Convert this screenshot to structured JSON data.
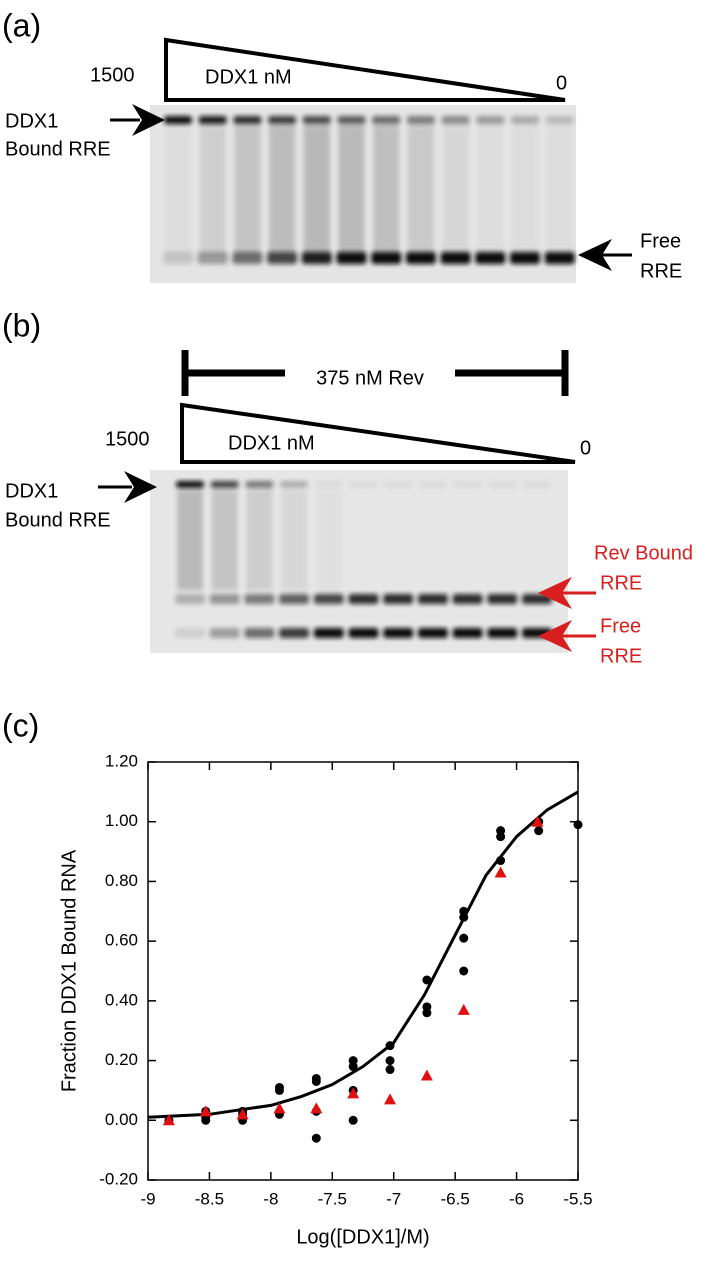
{
  "panels": {
    "a": "(a)",
    "b": "(b)",
    "c": "(c)"
  },
  "gel_a": {
    "max_label": 1500,
    "gradient_label": "DDX1 nM",
    "min_label": 0,
    "bound_label": [
      "DDX1",
      "Bound RRE"
    ],
    "free_label": [
      "Free",
      "RRE"
    ]
  },
  "gel_b": {
    "rev_label": "375 nM Rev",
    "max_label": 1500,
    "gradient_label": "DDX1 nM",
    "min_label": 0,
    "bound_label": [
      "DDX1",
      "Bound RRE"
    ],
    "rev_bound_label": [
      "Rev Bound",
      "RRE"
    ],
    "free_label": [
      "Free",
      "RRE"
    ]
  },
  "chart_data": {
    "type": "scatter",
    "xlabel": "Log([DDX1]/M)",
    "ylabel": "Fraction DDX1 Bound RNA",
    "xlim": [
      -9,
      -5.5
    ],
    "xticks": [
      -9,
      -8.5,
      -8,
      -7.5,
      -7,
      -6.5,
      -6,
      -5.5
    ],
    "ylim": [
      -0.2,
      1.2
    ],
    "yticks": [
      {
        "value": -0.2,
        "label": "-0.20"
      },
      {
        "value": 0,
        "label": "0.00"
      },
      {
        "value": 0.2,
        "label": "0.20"
      },
      {
        "value": 0.4,
        "label": "0.40"
      },
      {
        "value": 0.6,
        "label": "0.60"
      },
      {
        "value": 0.8,
        "label": "0.80"
      },
      {
        "value": 1.0,
        "label": "1.00"
      },
      {
        "value": 1.2,
        "label": "1.20"
      }
    ],
    "series": [
      {
        "marker": "line",
        "color": "#000000",
        "x": [
          -9,
          -8.75,
          -8.5,
          -8.25,
          -8,
          -7.75,
          -7.5,
          -7.25,
          -7,
          -6.75,
          -6.5,
          -6.25,
          -6,
          -5.75,
          -5.5
        ],
        "values": [
          0.01,
          0.015,
          0.02,
          0.035,
          0.05,
          0.08,
          0.12,
          0.18,
          0.26,
          0.42,
          0.62,
          0.82,
          0.95,
          1.04,
          1.1
        ]
      },
      {
        "marker": "circle",
        "color": "#000000",
        "x": [
          -8.83,
          -8.53,
          -8.53,
          -8.53,
          -8.23,
          -8.23,
          -8.23,
          -7.93,
          -7.93,
          -7.93,
          -7.63,
          -7.63,
          -7.63,
          -7.63,
          -7.33,
          -7.33,
          -7.33,
          -7.33,
          -7.03,
          -7.03,
          -7.03,
          -6.73,
          -6.73,
          -6.73,
          -6.43,
          -6.43,
          -6.43,
          -6.43,
          -6.13,
          -6.13,
          -6.13,
          -5.82,
          -5.82,
          -5.5
        ],
        "values": [
          0.0,
          0.0,
          0.01,
          0.03,
          0.0,
          0.02,
          0.03,
          0.02,
          0.1,
          0.11,
          -0.06,
          0.03,
          0.13,
          0.14,
          0.0,
          0.1,
          0.18,
          0.2,
          0.17,
          0.2,
          0.25,
          0.36,
          0.38,
          0.47,
          0.5,
          0.61,
          0.68,
          0.7,
          0.87,
          0.95,
          0.97,
          0.97,
          1.0,
          0.99
        ]
      },
      {
        "marker": "triangle",
        "color": "#e01010",
        "x": [
          -8.83,
          -8.53,
          -8.23,
          -7.93,
          -7.63,
          -7.33,
          -7.03,
          -6.73,
          -6.43,
          -6.13,
          -5.83
        ],
        "values": [
          0.0,
          0.03,
          0.02,
          0.04,
          0.04,
          0.09,
          0.07,
          0.15,
          0.37,
          0.83,
          1.0
        ]
      }
    ]
  }
}
